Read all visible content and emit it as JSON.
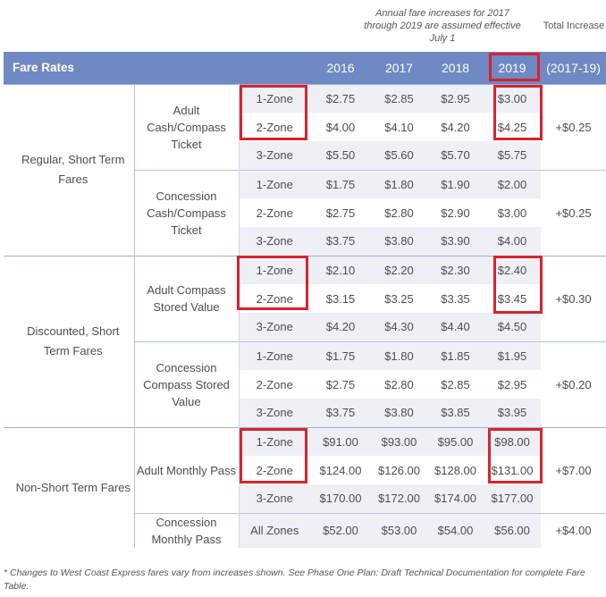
{
  "header_note": "Annual fare increases for 2017 through 2019 are assumed effective July 1",
  "total_increase_label": "Total Increase",
  "columns": [
    "Fare Rates",
    "2016",
    "2017",
    "2018",
    "2019",
    "(2017-19)"
  ],
  "categories": [
    {
      "name": "Regular, Short Term Fares",
      "groups": [
        {
          "name": "Adult Cash/Compass Ticket",
          "total": "+$0.25",
          "rows": [
            {
              "zone": "1-Zone",
              "values": [
                "$2.75",
                "$2.85",
                "$2.95",
                "$3.00"
              ]
            },
            {
              "zone": "2-Zone",
              "values": [
                "$4.00",
                "$4.10",
                "$4.20",
                "$4.25"
              ]
            },
            {
              "zone": "3-Zone",
              "values": [
                "$5.50",
                "$5.60",
                "$5.70",
                "$5.75"
              ]
            }
          ]
        },
        {
          "name": "Concession Cash/Compass Ticket",
          "total": "+$0.25",
          "rows": [
            {
              "zone": "1-Zone",
              "values": [
                "$1.75",
                "$1.80",
                "$1.90",
                "$2.00"
              ]
            },
            {
              "zone": "2-Zone",
              "values": [
                "$2.75",
                "$2.80",
                "$2.90",
                "$3.00"
              ]
            },
            {
              "zone": "3-Zone",
              "values": [
                "$3.75",
                "$3.80",
                "$3.90",
                "$4.00"
              ]
            }
          ]
        }
      ]
    },
    {
      "name": "Discounted, Short Term Fares",
      "groups": [
        {
          "name": "Adult Compass Stored Value",
          "total": "+$0.30",
          "rows": [
            {
              "zone": "1-Zone",
              "values": [
                "$2.10",
                "$2.20",
                "$2.30",
                "$2.40"
              ]
            },
            {
              "zone": "2-Zone",
              "values": [
                "$3.15",
                "$3.25",
                "$3.35",
                "$3.45"
              ]
            },
            {
              "zone": "3-Zone",
              "values": [
                "$4.20",
                "$4.30",
                "$4.40",
                "$4.50"
              ]
            }
          ]
        },
        {
          "name": "Concession Compass Stored Value",
          "total": "+$0.20",
          "rows": [
            {
              "zone": "1-Zone",
              "values": [
                "$1.75",
                "$1.80",
                "$1.85",
                "$1.95"
              ]
            },
            {
              "zone": "2-Zone",
              "values": [
                "$2.75",
                "$2.80",
                "$2.85",
                "$2.95"
              ]
            },
            {
              "zone": "3-Zone",
              "values": [
                "$3.75",
                "$3.80",
                "$3.85",
                "$3.95"
              ]
            }
          ]
        }
      ]
    },
    {
      "name": "Non-Short Term Fares",
      "groups": [
        {
          "name": "Adult Monthly Pass",
          "total": "+$7.00",
          "rows": [
            {
              "zone": "1-Zone",
              "values": [
                "$91.00",
                "$93.00",
                "$95.00",
                "$98.00"
              ]
            },
            {
              "zone": "2-Zone",
              "values": [
                "$124.00",
                "$126.00",
                "$128.00",
                "$131.00"
              ]
            },
            {
              "zone": "3-Zone",
              "values": [
                "$170.00",
                "$172.00",
                "$174.00",
                "$177.00"
              ]
            }
          ]
        },
        {
          "name": "Concession Monthly Pass",
          "total": "+$4.00",
          "rows": [
            {
              "zone": "All Zones",
              "values": [
                "$52.00",
                "$53.00",
                "$54.00",
                "$56.00"
              ]
            }
          ]
        }
      ]
    }
  ],
  "highlight_color": "#d9232d",
  "header_color": "#6e89c3",
  "footnote": "* Changes to West Coast Express fares vary from increases shown. See Phase One Plan: Draft Technical Documentation for complete Fare Table."
}
